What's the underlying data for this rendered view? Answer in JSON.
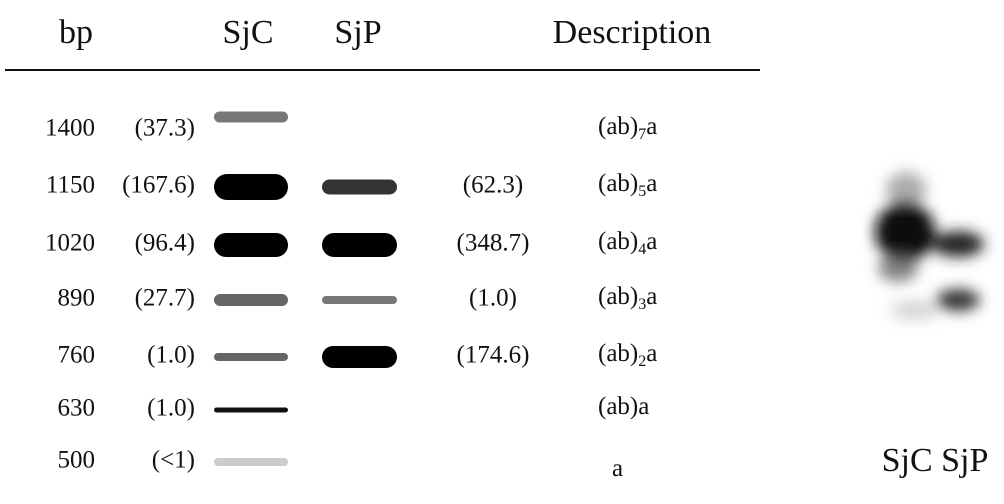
{
  "header": {
    "bp": "bp",
    "sjc": "SjC",
    "sjp": "SjP",
    "description": "Description"
  },
  "rows": [
    {
      "bp": "1400",
      "sjc": "(37.3)",
      "description": [
        "(ab)",
        "7",
        "a"
      ]
    },
    {
      "bp": "1150",
      "sjc": "(167.6)",
      "sjp": "(62.3)",
      "description": [
        "(ab)",
        "5",
        "a"
      ]
    },
    {
      "bp": "1020",
      "sjc": "(96.4)",
      "sjp": "(348.7)",
      "description": [
        "(ab)",
        "4",
        "a"
      ]
    },
    {
      "bp": "890",
      "sjc": "(27.7)",
      "sjp": "(1.0)",
      "description": [
        "(ab)",
        "3",
        "a"
      ]
    },
    {
      "bp": "760",
      "sjc": "(1.0)",
      "sjp": "(174.6)",
      "description": [
        "(ab)",
        "2",
        "a"
      ]
    },
    {
      "bp": "630",
      "sjc": "(1.0)",
      "description": [
        "(ab)a"
      ]
    },
    {
      "bp": "500",
      "sjc": "(<1)",
      "description": [
        "a"
      ]
    }
  ],
  "gel_label": "SjC SjP"
}
